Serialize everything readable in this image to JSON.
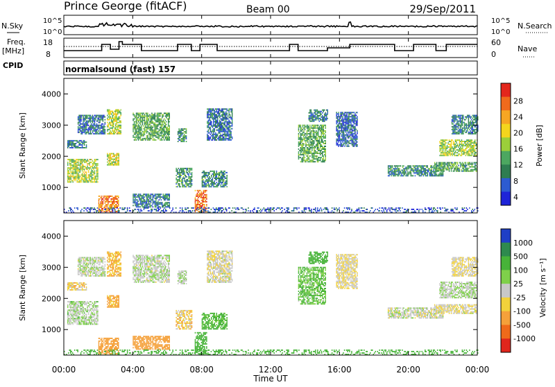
{
  "header": {
    "title": "Prince George (fitACF)",
    "beam": "Beam 00",
    "date": "29/Sep/2011"
  },
  "noise_panel": {
    "left_label": "N.Sky",
    "right_label": "N.Search",
    "left_ticks": [
      "10^5",
      "10^0"
    ],
    "right_ticks": [
      "10^5",
      "10^0"
    ]
  },
  "freq_panel": {
    "left_label_1": "Freq.",
    "left_label_2": "[MHz]",
    "left_ticks": [
      "18",
      "8"
    ],
    "right_label": "Nave",
    "right_ticks": [
      "60",
      "0"
    ]
  },
  "cpid": {
    "label": "CPID",
    "mode": "normalsound (fast) 157"
  },
  "power_panel": {
    "ylabel": "Slant Range [km]",
    "yticks": [
      "4000",
      "3000",
      "2000",
      "1000"
    ],
    "colorbar_label": "Power [dB]",
    "colorbar_ticks": [
      "28",
      "24",
      "20",
      "16",
      "12",
      "8",
      "4"
    ],
    "colors": [
      "#1e24d8",
      "#2d5bd1",
      "#2e7d51",
      "#4ca760",
      "#9bcf3a",
      "#f4d51d",
      "#f6a623",
      "#f06a1c",
      "#e3261c"
    ]
  },
  "velocity_panel": {
    "ylabel": "Slant Range [km]",
    "yticks": [
      "4000",
      "3000",
      "2000",
      "1000"
    ],
    "colorbar_label": "Velocity [m s⁻¹]",
    "colorbar_ticks": [
      "1000",
      "500",
      "100",
      "25",
      "-25",
      "-100",
      "-500",
      "-1000"
    ],
    "colors": [
      "#1f3fc6",
      "#2e8a4e",
      "#47b339",
      "#7fd04a",
      "#c8c8c8",
      "#f2d23b",
      "#f5a13a",
      "#ef6a1a",
      "#e0261c"
    ]
  },
  "x_axis": {
    "label": "Time UT",
    "ticks": [
      "00:00",
      "04:00",
      "08:00",
      "12:00",
      "16:00",
      "20:00",
      "00:00"
    ]
  },
  "chart_data": {
    "type": "heatmap",
    "x_unit": "hours UT",
    "xlim": [
      0,
      24
    ],
    "y_unit": "km",
    "ylim": [
      180,
      4500
    ],
    "echo_regions": [
      {
        "t0": 0.2,
        "t1": 2.0,
        "r0": 1150,
        "r1": 1900,
        "power": 18,
        "velocity": 25
      },
      {
        "t0": 0.2,
        "t1": 1.3,
        "r0": 2250,
        "r1": 2500,
        "power": 10,
        "velocity": -40
      },
      {
        "t0": 0.8,
        "t1": 2.4,
        "r0": 2700,
        "r1": 3300,
        "power": 9,
        "velocity": 10
      },
      {
        "t0": 2.0,
        "t1": 3.2,
        "r0": 200,
        "r1": 700,
        "power": 26,
        "velocity": -150
      },
      {
        "t0": 2.5,
        "t1": 3.3,
        "r0": 2700,
        "r1": 3500,
        "power": 18,
        "velocity": -60
      },
      {
        "t0": 2.5,
        "t1": 3.2,
        "r0": 1700,
        "r1": 2100,
        "power": 19,
        "velocity": -80
      },
      {
        "t0": 4.0,
        "t1": 6.1,
        "r0": 2500,
        "r1": 3400,
        "power": 14,
        "velocity": 10
      },
      {
        "t0": 4.0,
        "t1": 6.1,
        "r0": 350,
        "r1": 800,
        "power": 10,
        "velocity": -100
      },
      {
        "t0": 6.6,
        "t1": 7.1,
        "r0": 2450,
        "r1": 2900,
        "power": 12,
        "velocity": 15
      },
      {
        "t0": 6.5,
        "t1": 7.4,
        "r0": 1000,
        "r1": 1600,
        "power": 12,
        "velocity": -40
      },
      {
        "t0": 7.6,
        "t1": 8.3,
        "r0": 200,
        "r1": 900,
        "power": 27,
        "velocity": 120
      },
      {
        "t0": 8.0,
        "t1": 9.5,
        "r0": 1000,
        "r1": 1500,
        "power": 11,
        "velocity": 80
      },
      {
        "t0": 8.3,
        "t1": 9.8,
        "r0": 2500,
        "r1": 3500,
        "power": 9,
        "velocity": -10
      },
      {
        "t0": 13.6,
        "t1": 15.2,
        "r0": 1800,
        "r1": 3000,
        "power": 14,
        "velocity": 60
      },
      {
        "t0": 14.2,
        "t1": 15.3,
        "r0": 3100,
        "r1": 3500,
        "power": 10,
        "velocity": 120
      },
      {
        "t0": 15.8,
        "t1": 17.0,
        "r0": 2300,
        "r1": 3400,
        "power": 8,
        "velocity": -20
      },
      {
        "t0": 18.8,
        "t1": 22.0,
        "r0": 1350,
        "r1": 1700,
        "power": 11,
        "velocity": 0
      },
      {
        "t0": 21.5,
        "t1": 24.0,
        "r0": 1500,
        "r1": 1800,
        "power": 13,
        "velocity": -10
      },
      {
        "t0": 21.8,
        "t1": 24.0,
        "r0": 2000,
        "r1": 2500,
        "power": 17,
        "velocity": 20
      },
      {
        "t0": 22.5,
        "t1": 24.0,
        "r0": 2700,
        "r1": 3300,
        "power": 10,
        "velocity": -20
      },
      {
        "t0": 0.0,
        "t1": 24.0,
        "r0": 180,
        "r1": 350,
        "power": 7,
        "velocity": 200
      }
    ]
  }
}
